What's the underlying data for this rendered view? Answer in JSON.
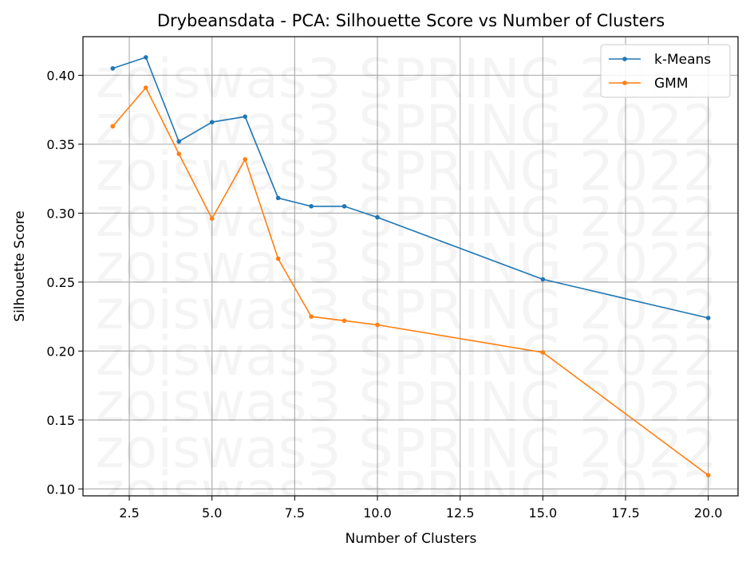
{
  "chart_data": {
    "type": "line",
    "title": "Drybeansdata - PCA: Silhouette Score vs Number of Clusters",
    "xlabel": "Number of Clusters",
    "ylabel": "Silhouette Score",
    "xlim": [
      1.1,
      20.9
    ],
    "ylim": [
      0.095,
      0.428
    ],
    "xticks": [
      "2.5",
      "5.0",
      "7.5",
      "10.0",
      "12.5",
      "15.0",
      "17.5",
      "20.0"
    ],
    "yticks": [
      "0.10",
      "0.15",
      "0.20",
      "0.25",
      "0.30",
      "0.35",
      "0.40"
    ],
    "grid": true,
    "legend_position": "top-right",
    "x": [
      2,
      3,
      4,
      5,
      6,
      7,
      8,
      9,
      10,
      15,
      20
    ],
    "series": [
      {
        "name": "k-Means",
        "color": "#1f77b4",
        "values": [
          0.405,
          0.413,
          0.352,
          0.366,
          0.37,
          0.311,
          0.305,
          0.305,
          0.297,
          0.252,
          0.224
        ]
      },
      {
        "name": "GMM",
        "color": "#ff7f0e",
        "values": [
          0.363,
          0.391,
          0.343,
          0.296,
          0.339,
          0.267,
          0.225,
          0.222,
          0.219,
          0.199,
          0.11
        ]
      }
    ],
    "watermark": "zoiswas3 SPRING 2022"
  }
}
